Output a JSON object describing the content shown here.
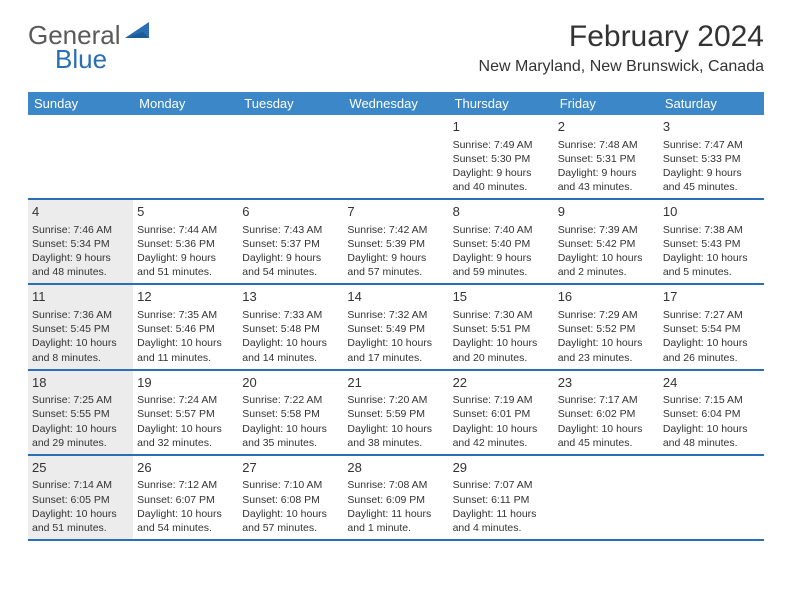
{
  "logo": {
    "g": "General",
    "b": "Blue"
  },
  "title": "February 2024",
  "location": "New Maryland, New Brunswick, Canada",
  "dayHeaders": [
    "Sunday",
    "Monday",
    "Tuesday",
    "Wednesday",
    "Thursday",
    "Friday",
    "Saturday"
  ],
  "colors": {
    "headerBg": "#3b87c8",
    "borderBlue": "#2a6fb5",
    "dimBg": "#ececec",
    "text": "#333333"
  },
  "weeks": [
    [
      {
        "empty": true
      },
      {
        "empty": true
      },
      {
        "empty": true
      },
      {
        "empty": true
      },
      {
        "n": "1",
        "sunrise": "7:49 AM",
        "sunset": "5:30 PM",
        "daylight": "9 hours and 40 minutes."
      },
      {
        "n": "2",
        "sunrise": "7:48 AM",
        "sunset": "5:31 PM",
        "daylight": "9 hours and 43 minutes."
      },
      {
        "n": "3",
        "sunrise": "7:47 AM",
        "sunset": "5:33 PM",
        "daylight": "9 hours and 45 minutes."
      }
    ],
    [
      {
        "n": "4",
        "dim": true,
        "sunrise": "7:46 AM",
        "sunset": "5:34 PM",
        "daylight": "9 hours and 48 minutes."
      },
      {
        "n": "5",
        "sunrise": "7:44 AM",
        "sunset": "5:36 PM",
        "daylight": "9 hours and 51 minutes."
      },
      {
        "n": "6",
        "sunrise": "7:43 AM",
        "sunset": "5:37 PM",
        "daylight": "9 hours and 54 minutes."
      },
      {
        "n": "7",
        "sunrise": "7:42 AM",
        "sunset": "5:39 PM",
        "daylight": "9 hours and 57 minutes."
      },
      {
        "n": "8",
        "sunrise": "7:40 AM",
        "sunset": "5:40 PM",
        "daylight": "9 hours and 59 minutes."
      },
      {
        "n": "9",
        "sunrise": "7:39 AM",
        "sunset": "5:42 PM",
        "daylight": "10 hours and 2 minutes."
      },
      {
        "n": "10",
        "sunrise": "7:38 AM",
        "sunset": "5:43 PM",
        "daylight": "10 hours and 5 minutes."
      }
    ],
    [
      {
        "n": "11",
        "dim": true,
        "sunrise": "7:36 AM",
        "sunset": "5:45 PM",
        "daylight": "10 hours and 8 minutes."
      },
      {
        "n": "12",
        "sunrise": "7:35 AM",
        "sunset": "5:46 PM",
        "daylight": "10 hours and 11 minutes."
      },
      {
        "n": "13",
        "sunrise": "7:33 AM",
        "sunset": "5:48 PM",
        "daylight": "10 hours and 14 minutes."
      },
      {
        "n": "14",
        "sunrise": "7:32 AM",
        "sunset": "5:49 PM",
        "daylight": "10 hours and 17 minutes."
      },
      {
        "n": "15",
        "sunrise": "7:30 AM",
        "sunset": "5:51 PM",
        "daylight": "10 hours and 20 minutes."
      },
      {
        "n": "16",
        "sunrise": "7:29 AM",
        "sunset": "5:52 PM",
        "daylight": "10 hours and 23 minutes."
      },
      {
        "n": "17",
        "sunrise": "7:27 AM",
        "sunset": "5:54 PM",
        "daylight": "10 hours and 26 minutes."
      }
    ],
    [
      {
        "n": "18",
        "dim": true,
        "sunrise": "7:25 AM",
        "sunset": "5:55 PM",
        "daylight": "10 hours and 29 minutes."
      },
      {
        "n": "19",
        "sunrise": "7:24 AM",
        "sunset": "5:57 PM",
        "daylight": "10 hours and 32 minutes."
      },
      {
        "n": "20",
        "sunrise": "7:22 AM",
        "sunset": "5:58 PM",
        "daylight": "10 hours and 35 minutes."
      },
      {
        "n": "21",
        "sunrise": "7:20 AM",
        "sunset": "5:59 PM",
        "daylight": "10 hours and 38 minutes."
      },
      {
        "n": "22",
        "sunrise": "7:19 AM",
        "sunset": "6:01 PM",
        "daylight": "10 hours and 42 minutes."
      },
      {
        "n": "23",
        "sunrise": "7:17 AM",
        "sunset": "6:02 PM",
        "daylight": "10 hours and 45 minutes."
      },
      {
        "n": "24",
        "sunrise": "7:15 AM",
        "sunset": "6:04 PM",
        "daylight": "10 hours and 48 minutes."
      }
    ],
    [
      {
        "n": "25",
        "dim": true,
        "sunrise": "7:14 AM",
        "sunset": "6:05 PM",
        "daylight": "10 hours and 51 minutes."
      },
      {
        "n": "26",
        "sunrise": "7:12 AM",
        "sunset": "6:07 PM",
        "daylight": "10 hours and 54 minutes."
      },
      {
        "n": "27",
        "sunrise": "7:10 AM",
        "sunset": "6:08 PM",
        "daylight": "10 hours and 57 minutes."
      },
      {
        "n": "28",
        "sunrise": "7:08 AM",
        "sunset": "6:09 PM",
        "daylight": "11 hours and 1 minute."
      },
      {
        "n": "29",
        "sunrise": "7:07 AM",
        "sunset": "6:11 PM",
        "daylight": "11 hours and 4 minutes."
      },
      {
        "empty": true
      },
      {
        "empty": true
      }
    ]
  ]
}
